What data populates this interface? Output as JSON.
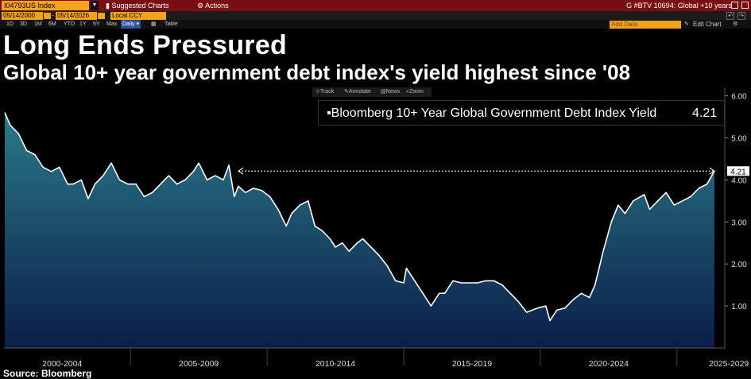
{
  "toolbar": {
    "ticker": "I04793US Index",
    "menu_suggested": "Suggested Charts",
    "menu_actions": "Actions",
    "story_label": "G #BTV 10694: Global +10 years"
  },
  "controls": {
    "start_date": "05/14/2000",
    "end_date": "05/14/2026",
    "currency": "Local CCY",
    "ranges": [
      "1D",
      "3D",
      "1M",
      "6M",
      "YTD",
      "1Y",
      "5Y",
      "Max"
    ],
    "frequency": "Daily",
    "table_label": "Table",
    "add_data_placeholder": "Add Data",
    "edit_chart": "Edit Chart"
  },
  "chart_tools": {
    "track": "Track",
    "annotate": "Annotate",
    "news": "News",
    "zoom": "Zoom"
  },
  "title": "Long Ends Pressured",
  "subtitle": "Global 10+ year government debt index's yield highest since '08",
  "source": "Source: Bloomberg",
  "colors": {
    "accent": "#f2a31b",
    "toolbar": "#7a0c14",
    "fill_top": "#2a7a88",
    "fill_bottom": "#0b1e4a"
  },
  "chart_data": {
    "type": "area",
    "series": [
      {
        "name": "Bloomberg 10+ Year Global Government Debt Index Yield",
        "last_value": "4.21",
        "x": [
          2000.4,
          2000.6,
          2000.9,
          2001.2,
          2001.5,
          2001.8,
          2002.1,
          2002.4,
          2002.7,
          2002.9,
          2003.2,
          2003.45,
          2003.7,
          2004.0,
          2004.3,
          2004.6,
          2004.9,
          2005.2,
          2005.5,
          2005.8,
          2006.1,
          2006.4,
          2006.7,
          2007.0,
          2007.3,
          2007.5,
          2007.8,
          2008.1,
          2008.4,
          2008.6,
          2008.8,
          2008.95,
          2009.2,
          2009.5,
          2009.8,
          2010.1,
          2010.4,
          2010.7,
          2010.9,
          2011.2,
          2011.5,
          2011.75,
          2012.0,
          2012.3,
          2012.5,
          2012.75,
          2013.0,
          2013.3,
          2013.5,
          2013.8,
          2014.1,
          2014.4,
          2014.7,
          2015.0,
          2015.1,
          2015.4,
          2015.7,
          2016.0,
          2016.3,
          2016.5,
          2016.8,
          2017.1,
          2017.4,
          2017.7,
          2018.0,
          2018.3,
          2018.6,
          2018.9,
          2019.2,
          2019.5,
          2019.7,
          2019.9,
          2020.2,
          2020.35,
          2020.6,
          2020.9,
          2021.2,
          2021.5,
          2021.8,
          2022.0,
          2022.3,
          2022.6,
          2022.85,
          2023.1,
          2023.4,
          2023.8,
          2024.0,
          2024.3,
          2024.6,
          2024.9,
          2025.2,
          2025.5,
          2025.8,
          2026.1,
          2026.37
        ],
        "y": [
          5.6,
          5.3,
          5.1,
          4.7,
          4.6,
          4.3,
          4.2,
          4.3,
          3.9,
          3.9,
          4.0,
          3.55,
          3.9,
          4.1,
          4.4,
          4.0,
          3.9,
          3.9,
          3.6,
          3.7,
          3.9,
          4.1,
          3.9,
          4.0,
          4.2,
          4.4,
          4.0,
          4.1,
          4.0,
          4.35,
          3.6,
          3.85,
          3.7,
          3.8,
          3.75,
          3.6,
          3.3,
          2.9,
          3.2,
          3.4,
          3.5,
          2.9,
          2.8,
          2.6,
          2.4,
          2.5,
          2.3,
          2.5,
          2.6,
          2.4,
          2.2,
          1.95,
          1.6,
          1.55,
          1.9,
          1.6,
          1.3,
          1.0,
          1.3,
          1.3,
          1.6,
          1.55,
          1.55,
          1.55,
          1.6,
          1.6,
          1.5,
          1.3,
          1.1,
          0.85,
          0.9,
          0.95,
          1.0,
          0.65,
          0.9,
          0.95,
          1.15,
          1.3,
          1.2,
          1.5,
          2.3,
          3.0,
          3.4,
          3.2,
          3.5,
          3.65,
          3.3,
          3.5,
          3.7,
          3.4,
          3.5,
          3.6,
          3.8,
          3.9,
          4.21
        ]
      }
    ],
    "x_tick_labels": [
      "2000-2004",
      "2005-2009",
      "2010-2014",
      "2015-2019",
      "2020-2024",
      "2025-2029"
    ],
    "x_tick_label_centers": [
      2002.5,
      2007.5,
      2012.5,
      2017.5,
      2022.5,
      2026.9
    ],
    "x_tick_positions": [
      2005,
      2010,
      2015,
      2020,
      2025
    ],
    "xlim": [
      2000.37,
      2026.75
    ],
    "y_ticks": [
      1,
      2,
      3,
      4,
      5,
      6
    ],
    "y_tick_labels": [
      "1.00",
      "2.00",
      "3.00",
      "4.00",
      "5.00",
      "6.00"
    ],
    "ylim": [
      0.0,
      6.2
    ],
    "reference_line": {
      "y": 4.21,
      "x_start": 2008.95
    },
    "grid": false
  }
}
